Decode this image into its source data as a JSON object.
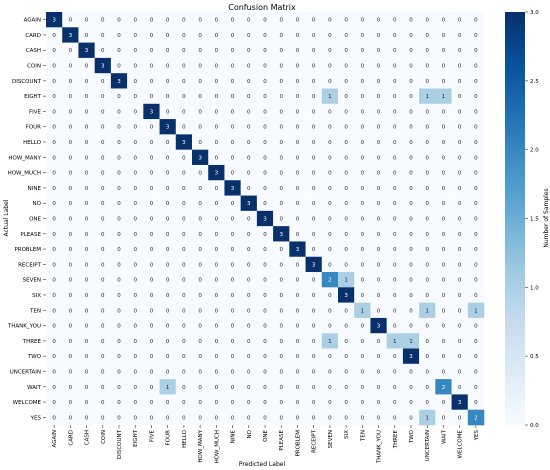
{
  "chart_data": {
    "type": "heatmap",
    "title": "Confusion Matrix",
    "xlabel": "Predicted Label",
    "ylabel": "Actual Label",
    "labels": [
      "AGAIN",
      "CARD",
      "CASH",
      "COIN",
      "DISCOUNT",
      "EIGHT",
      "FIVE",
      "FOUR",
      "HELLO",
      "HOW_MANY",
      "HOW_MUCH",
      "NINE",
      "NO",
      "ONE",
      "PLEASE",
      "PROBLEM",
      "RECEIPT",
      "SEVEN",
      "SIX",
      "TEN",
      "THANK_YOU",
      "THREE",
      "TWO",
      "UNCERTAIN",
      "WAIT",
      "WELCOME",
      "YES"
    ],
    "matrix": [
      [
        3,
        0,
        0,
        0,
        0,
        0,
        0,
        0,
        0,
        0,
        0,
        0,
        0,
        0,
        0,
        0,
        0,
        0,
        0,
        0,
        0,
        0,
        0,
        0,
        0,
        0,
        0
      ],
      [
        0,
        3,
        0,
        0,
        0,
        0,
        0,
        0,
        0,
        0,
        0,
        0,
        0,
        0,
        0,
        0,
        0,
        0,
        0,
        0,
        0,
        0,
        0,
        0,
        0,
        0,
        0
      ],
      [
        0,
        0,
        3,
        0,
        0,
        0,
        0,
        0,
        0,
        0,
        0,
        0,
        0,
        0,
        0,
        0,
        0,
        0,
        0,
        0,
        0,
        0,
        0,
        0,
        0,
        0,
        0
      ],
      [
        0,
        0,
        0,
        3,
        0,
        0,
        0,
        0,
        0,
        0,
        0,
        0,
        0,
        0,
        0,
        0,
        0,
        0,
        0,
        0,
        0,
        0,
        0,
        0,
        0,
        0,
        0
      ],
      [
        0,
        0,
        0,
        0,
        3,
        0,
        0,
        0,
        0,
        0,
        0,
        0,
        0,
        0,
        0,
        0,
        0,
        0,
        0,
        0,
        0,
        0,
        0,
        0,
        0,
        0,
        0
      ],
      [
        0,
        0,
        0,
        0,
        0,
        0,
        0,
        0,
        0,
        0,
        0,
        0,
        0,
        0,
        0,
        0,
        0,
        1,
        0,
        0,
        0,
        0,
        0,
        1,
        1,
        0,
        0
      ],
      [
        0,
        0,
        0,
        0,
        0,
        0,
        3,
        0,
        0,
        0,
        0,
        0,
        0,
        0,
        0,
        0,
        0,
        0,
        0,
        0,
        0,
        0,
        0,
        0,
        0,
        0,
        0
      ],
      [
        0,
        0,
        0,
        0,
        0,
        0,
        0,
        3,
        0,
        0,
        0,
        0,
        0,
        0,
        0,
        0,
        0,
        0,
        0,
        0,
        0,
        0,
        0,
        0,
        0,
        0,
        0
      ],
      [
        0,
        0,
        0,
        0,
        0,
        0,
        0,
        0,
        3,
        0,
        0,
        0,
        0,
        0,
        0,
        0,
        0,
        0,
        0,
        0,
        0,
        0,
        0,
        0,
        0,
        0,
        0
      ],
      [
        0,
        0,
        0,
        0,
        0,
        0,
        0,
        0,
        0,
        3,
        0,
        0,
        0,
        0,
        0,
        0,
        0,
        0,
        0,
        0,
        0,
        0,
        0,
        0,
        0,
        0,
        0
      ],
      [
        0,
        0,
        0,
        0,
        0,
        0,
        0,
        0,
        0,
        0,
        3,
        0,
        0,
        0,
        0,
        0,
        0,
        0,
        0,
        0,
        0,
        0,
        0,
        0,
        0,
        0,
        0
      ],
      [
        0,
        0,
        0,
        0,
        0,
        0,
        0,
        0,
        0,
        0,
        0,
        3,
        0,
        0,
        0,
        0,
        0,
        0,
        0,
        0,
        0,
        0,
        0,
        0,
        0,
        0,
        0
      ],
      [
        0,
        0,
        0,
        0,
        0,
        0,
        0,
        0,
        0,
        0,
        0,
        0,
        3,
        0,
        0,
        0,
        0,
        0,
        0,
        0,
        0,
        0,
        0,
        0,
        0,
        0,
        0
      ],
      [
        0,
        0,
        0,
        0,
        0,
        0,
        0,
        0,
        0,
        0,
        0,
        0,
        0,
        3,
        0,
        0,
        0,
        0,
        0,
        0,
        0,
        0,
        0,
        0,
        0,
        0,
        0
      ],
      [
        0,
        0,
        0,
        0,
        0,
        0,
        0,
        0,
        0,
        0,
        0,
        0,
        0,
        0,
        3,
        0,
        0,
        0,
        0,
        0,
        0,
        0,
        0,
        0,
        0,
        0,
        0
      ],
      [
        0,
        0,
        0,
        0,
        0,
        0,
        0,
        0,
        0,
        0,
        0,
        0,
        0,
        0,
        0,
        3,
        0,
        0,
        0,
        0,
        0,
        0,
        0,
        0,
        0,
        0,
        0
      ],
      [
        0,
        0,
        0,
        0,
        0,
        0,
        0,
        0,
        0,
        0,
        0,
        0,
        0,
        0,
        0,
        0,
        3,
        0,
        0,
        0,
        0,
        0,
        0,
        0,
        0,
        0,
        0
      ],
      [
        0,
        0,
        0,
        0,
        0,
        0,
        0,
        0,
        0,
        0,
        0,
        0,
        0,
        0,
        0,
        0,
        0,
        2,
        1,
        0,
        0,
        0,
        0,
        0,
        0,
        0,
        0
      ],
      [
        0,
        0,
        0,
        0,
        0,
        0,
        0,
        0,
        0,
        0,
        0,
        0,
        0,
        0,
        0,
        0,
        0,
        0,
        3,
        0,
        0,
        0,
        0,
        0,
        0,
        0,
        0
      ],
      [
        0,
        0,
        0,
        0,
        0,
        0,
        0,
        0,
        0,
        0,
        0,
        0,
        0,
        0,
        0,
        0,
        0,
        0,
        0,
        1,
        0,
        0,
        0,
        1,
        0,
        0,
        1
      ],
      [
        0,
        0,
        0,
        0,
        0,
        0,
        0,
        0,
        0,
        0,
        0,
        0,
        0,
        0,
        0,
        0,
        0,
        0,
        0,
        0,
        3,
        0,
        0,
        0,
        0,
        0,
        0
      ],
      [
        0,
        0,
        0,
        0,
        0,
        0,
        0,
        0,
        0,
        0,
        0,
        0,
        0,
        0,
        0,
        0,
        0,
        1,
        0,
        0,
        0,
        1,
        1,
        0,
        0,
        0,
        0
      ],
      [
        0,
        0,
        0,
        0,
        0,
        0,
        0,
        0,
        0,
        0,
        0,
        0,
        0,
        0,
        0,
        0,
        0,
        0,
        0,
        0,
        0,
        0,
        3,
        0,
        0,
        0,
        0
      ],
      [
        0,
        0,
        0,
        0,
        0,
        0,
        0,
        0,
        0,
        0,
        0,
        0,
        0,
        0,
        0,
        0,
        0,
        0,
        0,
        0,
        0,
        0,
        0,
        0,
        0,
        0,
        0
      ],
      [
        0,
        0,
        0,
        0,
        0,
        0,
        0,
        1,
        0,
        0,
        0,
        0,
        0,
        0,
        0,
        0,
        0,
        0,
        0,
        0,
        0,
        0,
        0,
        0,
        2,
        0,
        0
      ],
      [
        0,
        0,
        0,
        0,
        0,
        0,
        0,
        0,
        0,
        0,
        0,
        0,
        0,
        0,
        0,
        0,
        0,
        0,
        0,
        0,
        0,
        0,
        0,
        0,
        0,
        3,
        0
      ],
      [
        0,
        0,
        0,
        0,
        0,
        0,
        0,
        0,
        0,
        0,
        0,
        0,
        0,
        0,
        0,
        0,
        0,
        0,
        0,
        0,
        0,
        0,
        0,
        1,
        0,
        0,
        2
      ]
    ],
    "colorbar": {
      "label": "Number of Samples",
      "min": 0,
      "max": 3,
      "ticks": [
        "0.0",
        "0.5",
        "1.0",
        "1.5",
        "2.0",
        "2.5",
        "3.0"
      ]
    },
    "colors": {
      "low": "#f7fbff",
      "mid": "#6baed6",
      "high": "#08306b"
    }
  }
}
